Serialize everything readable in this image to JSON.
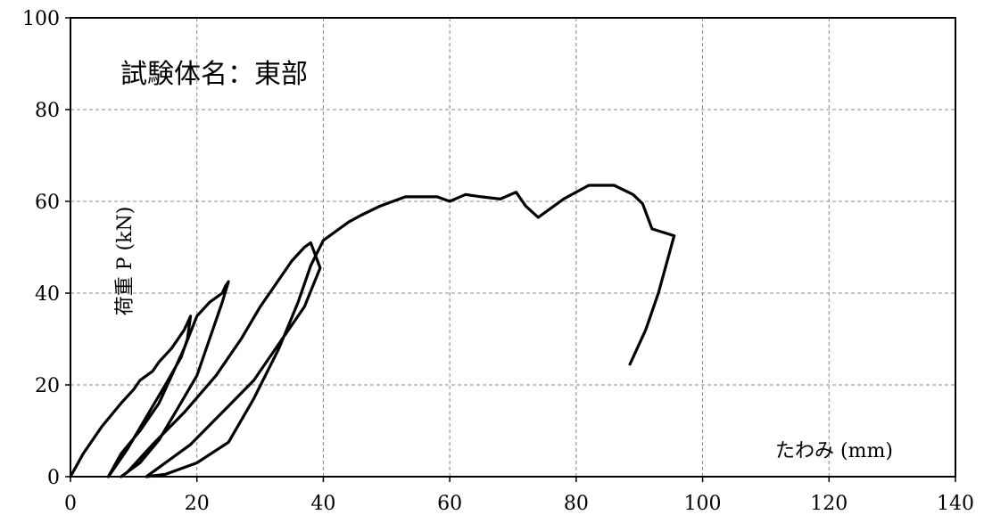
{
  "chart_data": {
    "type": "line",
    "annotation": "試験体名：東部",
    "xlabel": "たわみ (mm)",
    "ylabel": "荷重 P (kN)",
    "xlim": [
      0,
      140
    ],
    "ylim": [
      0,
      100
    ],
    "xticks": [
      "0",
      "20",
      "40",
      "60",
      "80",
      "100",
      "120",
      "140"
    ],
    "yticks": [
      "0",
      "20",
      "40",
      "60",
      "80",
      "100"
    ],
    "grid": true,
    "line_color": "#000000",
    "series": [
      {
        "x": [
          0,
          2,
          5,
          8,
          10,
          11,
          13,
          14,
          16,
          17,
          18,
          18.5,
          19,
          18.5,
          17.5,
          15,
          12,
          9,
          6,
          8,
          11,
          14,
          16,
          18,
          20,
          22,
          24,
          24.5,
          25,
          24,
          22,
          20,
          17,
          14,
          11,
          8,
          9,
          13,
          18,
          23,
          27,
          30,
          33,
          35,
          37,
          38,
          39.5,
          37,
          33,
          29,
          24,
          19,
          14,
          12,
          15,
          20,
          25,
          29,
          33,
          36,
          38,
          40,
          42,
          44,
          46,
          49,
          51,
          53,
          56,
          58,
          60,
          62.5,
          65,
          68,
          70.5,
          72,
          74,
          78,
          82,
          86,
          89,
          90.5,
          92,
          95.5,
          93,
          91,
          88.5
        ],
        "y": [
          0,
          5,
          11,
          16,
          19,
          21,
          23,
          25,
          28,
          30,
          32,
          33.5,
          35,
          30,
          26,
          20,
          13,
          6,
          0,
          5,
          10,
          16,
          22,
          28,
          35,
          38,
          40,
          41.5,
          42.5,
          38,
          30,
          22,
          15,
          8,
          3,
          0,
          1,
          7,
          14,
          22,
          30,
          37,
          43,
          47,
          50,
          51,
          45.5,
          37,
          29,
          21,
          14,
          7,
          2,
          0,
          0.5,
          3,
          7.5,
          17,
          28,
          38,
          46,
          51.5,
          53.5,
          55.5,
          57,
          59,
          60,
          61,
          61,
          61,
          60,
          61.5,
          61,
          60.5,
          62,
          59,
          56.5,
          60.5,
          63.5,
          63.5,
          61.5,
          59.5,
          54,
          52.5,
          40,
          32,
          24.5
        ]
      }
    ]
  }
}
